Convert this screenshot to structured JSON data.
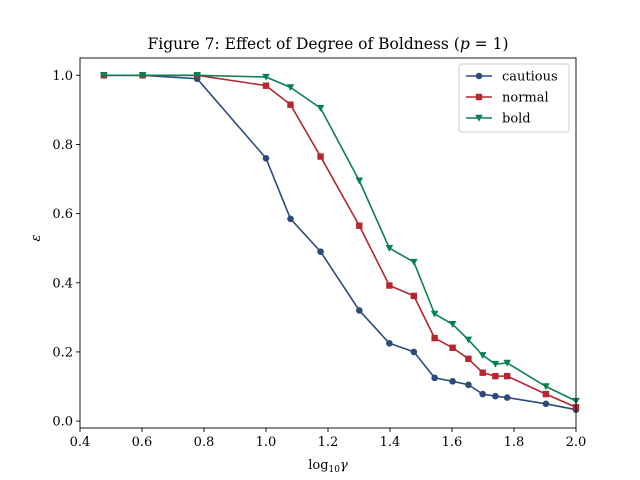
{
  "chart_data": {
    "type": "line",
    "title": "Figure 7: Effect of Degree of Boldness (p = 1)",
    "xlabel": "log10γ",
    "ylabel": "ε",
    "xlim": [
      0.4,
      2.0
    ],
    "ylim": [
      -0.02,
      1.05
    ],
    "xticks": [
      "0.4",
      "0.6",
      "0.8",
      "1.0",
      "1.2",
      "1.4",
      "1.6",
      "1.8",
      "2.0"
    ],
    "yticks": [
      "0.0",
      "0.2",
      "0.4",
      "0.6",
      "0.8",
      "1.0"
    ],
    "grid": false,
    "legend_position": "top-right",
    "series": [
      {
        "name": "cautious",
        "color": "#2a4b7c",
        "marker": "circle",
        "x": [
          0.477,
          0.602,
          0.778,
          1.0,
          1.079,
          1.176,
          1.301,
          1.398,
          1.477,
          1.544,
          1.602,
          1.653,
          1.699,
          1.74,
          1.778,
          1.903,
          2.0
        ],
        "y": [
          1.0,
          1.0,
          0.99,
          0.76,
          0.585,
          0.49,
          0.32,
          0.225,
          0.2,
          0.125,
          0.115,
          0.105,
          0.078,
          0.072,
          0.068,
          0.05,
          0.033
        ]
      },
      {
        "name": "normal",
        "color": "#b5262f",
        "marker": "square",
        "x": [
          0.477,
          0.602,
          0.778,
          1.0,
          1.079,
          1.176,
          1.301,
          1.398,
          1.477,
          1.544,
          1.602,
          1.653,
          1.699,
          1.74,
          1.778,
          1.903,
          2.0
        ],
        "y": [
          1.0,
          1.0,
          1.0,
          0.97,
          0.915,
          0.765,
          0.565,
          0.392,
          0.362,
          0.24,
          0.212,
          0.18,
          0.14,
          0.13,
          0.13,
          0.078,
          0.04
        ]
      },
      {
        "name": "bold",
        "color": "#0a8052",
        "marker": "triangle-down",
        "x": [
          0.477,
          0.602,
          0.778,
          1.0,
          1.079,
          1.176,
          1.301,
          1.398,
          1.477,
          1.544,
          1.602,
          1.653,
          1.699,
          1.74,
          1.778,
          1.903,
          2.0
        ],
        "y": [
          1.0,
          1.0,
          1.0,
          0.995,
          0.965,
          0.905,
          0.695,
          0.5,
          0.46,
          0.31,
          0.28,
          0.235,
          0.19,
          0.165,
          0.168,
          0.1,
          0.058
        ]
      }
    ]
  }
}
